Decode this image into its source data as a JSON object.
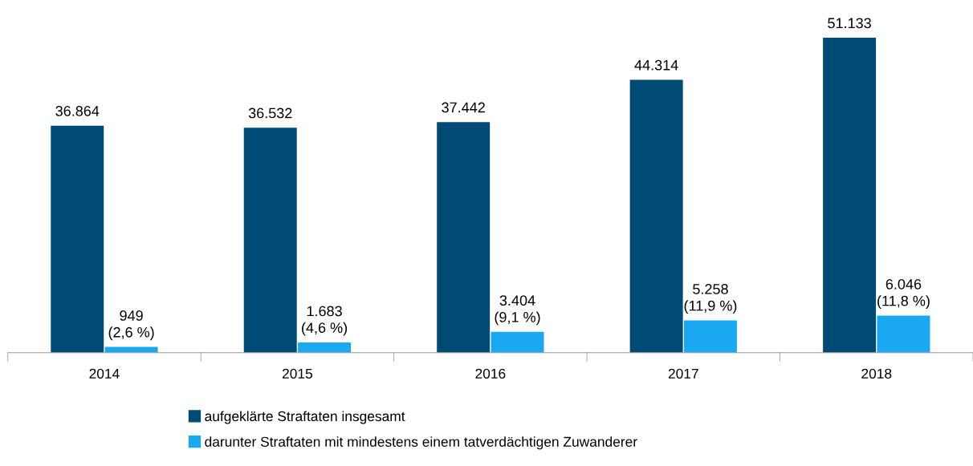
{
  "chart_data": {
    "type": "bar",
    "categories": [
      "2014",
      "2015",
      "2016",
      "2017",
      "2018"
    ],
    "series": [
      {
        "name": "aufgeklärte Straftaten insgesamt",
        "color": "#004b76",
        "values": [
          36864,
          36532,
          37442,
          44314,
          51133
        ],
        "value_labels": [
          "36.864",
          "36.532",
          "37.442",
          "44.314",
          "51.133"
        ]
      },
      {
        "name": "darunter Straftaten mit mindestens einem tatverdächtigen Zuwanderer",
        "color": "#1aa8f0",
        "values": [
          949,
          1683,
          3404,
          5258,
          6046
        ],
        "value_labels": [
          "949\n(2,6 %)",
          "1.683\n(4,6 %)",
          "3.404\n(9,1 %)",
          "5.258\n(11,9 %)",
          "6.046\n(11,8 %)"
        ]
      }
    ],
    "legend": "bottom",
    "grid": false
  }
}
